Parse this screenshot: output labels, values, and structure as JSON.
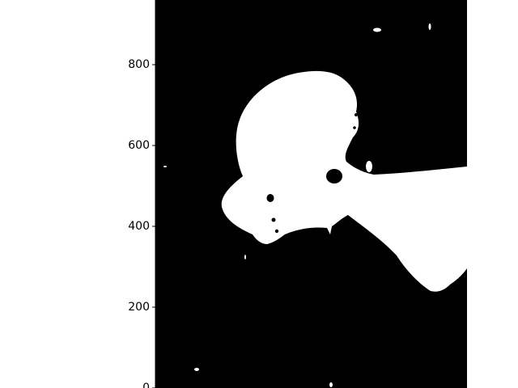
{
  "chart_data": {
    "type": "heatmap",
    "description": "binary mask image shown with matplotlib imshow (white foreground blob on black background)",
    "title": "",
    "xlabel": "",
    "ylabel": "",
    "ylim": [
      0,
      960
    ],
    "yticks": [
      0,
      200,
      400,
      600,
      800
    ],
    "ytick_labels": [
      "0",
      "200",
      "400",
      "600",
      "800"
    ],
    "x_axis_visible": false,
    "colors": {
      "background": "#000000",
      "foreground": "#ffffff",
      "axis": "#000000",
      "figure": "#ffffff"
    }
  }
}
